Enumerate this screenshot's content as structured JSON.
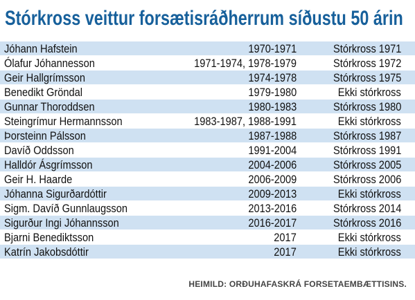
{
  "title": "Stórkross veittur forsætisráðherrum síðustu 50 árin",
  "rows": [
    {
      "name": "Jóhann Hafstein",
      "years": "1970-1971",
      "award": "Stórkross 1971"
    },
    {
      "name": "Ólafur Jóhannesson",
      "years": "1971-1974, 1978-1979",
      "award": "Stórkross 1972"
    },
    {
      "name": "Geir Hallgrímsson",
      "years": "1974-1978",
      "award": "Stórkross 1975"
    },
    {
      "name": "Benedikt Gröndal",
      "years": "1979-1980",
      "award": "Ekki stórkross"
    },
    {
      "name": "Gunnar Thoroddsen",
      "years": "1980-1983",
      "award": "Stórkross 1980"
    },
    {
      "name": "Steingrímur Hermannsson",
      "years": "1983-1987, 1988-1991",
      "award": "Ekki stórkross"
    },
    {
      "name": "Þorsteinn Pálsson",
      "years": "1987-1988",
      "award": "Stórkross 1987"
    },
    {
      "name": "Davíð Oddsson",
      "years": "1991-2004",
      "award": "Stórkross 1991"
    },
    {
      "name": "Halldór Ásgrímsson",
      "years": "2004-2006",
      "award": "Stórkross 2005"
    },
    {
      "name": "Geir H. Haarde",
      "years": "2006-2009",
      "award": "Stórkross 2006"
    },
    {
      "name": "Jóhanna Sigurðardóttir",
      "years": "2009-2013",
      "award": "Ekki stórkross"
    },
    {
      "name": "Sigm. Davíð Gunnlaugsson",
      "years": "2013-2016",
      "award": "Stórkross 2014"
    },
    {
      "name": "Sigurður Ingi Jóhannsson",
      "years": "2016-2017",
      "award": "Stórkross 2016"
    },
    {
      "name": "Bjarni Benediktsson",
      "years": "2017",
      "award": "Ekki stórkross"
    },
    {
      "name": "Katrín Jakobsdóttir",
      "years": "2017",
      "award": "Ekki stórkross"
    }
  ],
  "source": "HEIMILD: ORÐUHAFASKRÁ FORSETAEMBÆTTISINS.",
  "colors": {
    "title": "#17609b",
    "row_shade": "#cfe1f2",
    "row_plain": "#ffffff",
    "text": "#111111"
  }
}
